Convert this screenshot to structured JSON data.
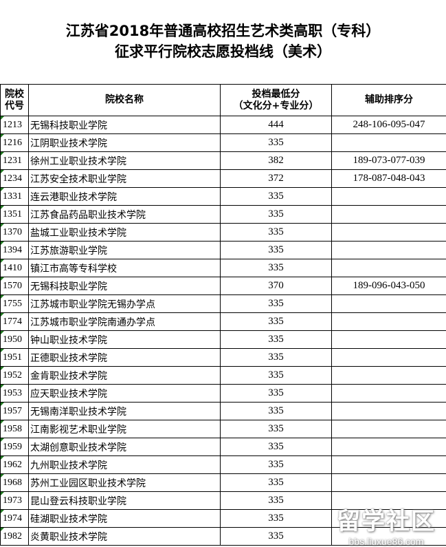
{
  "title": {
    "line1": "江苏省2018年普通高校招生艺术类高职（专科）",
    "line2": "征求平行院校志愿投档线（美术）"
  },
  "headers": {
    "code": "院校代号",
    "name": "院校名称",
    "score_line1": "投档最低分",
    "score_line2": "（文化分+专业分）",
    "aux": "辅助排序分"
  },
  "rows": [
    {
      "code": "1213",
      "name": "无锡科技职业学院",
      "score": "444",
      "aux": "248-106-095-047"
    },
    {
      "code": "1216",
      "name": "江阴职业技术学院",
      "score": "335",
      "aux": ""
    },
    {
      "code": "1231",
      "name": "徐州工业职业技术学院",
      "score": "382",
      "aux": "189-073-077-039"
    },
    {
      "code": "1234",
      "name": "江苏安全技术职业学院",
      "score": "372",
      "aux": "178-087-048-043"
    },
    {
      "code": "1331",
      "name": "连云港职业技术学院",
      "score": "335",
      "aux": ""
    },
    {
      "code": "1351",
      "name": "江苏食品药品职业技术学院",
      "score": "335",
      "aux": ""
    },
    {
      "code": "1370",
      "name": "盐城工业职业技术学院",
      "score": "335",
      "aux": ""
    },
    {
      "code": "1394",
      "name": "江苏旅游职业学院",
      "score": "335",
      "aux": ""
    },
    {
      "code": "1410",
      "name": "镇江市高等专科学校",
      "score": "335",
      "aux": ""
    },
    {
      "code": "1570",
      "name": "无锡科技职业学院",
      "score": "370",
      "aux": "189-096-043-050"
    },
    {
      "code": "1755",
      "name": "江苏城市职业学院无锡办学点",
      "score": "335",
      "aux": ""
    },
    {
      "code": "1774",
      "name": "江苏城市职业学院南通办学点",
      "score": "335",
      "aux": ""
    },
    {
      "code": "1950",
      "name": "钟山职业技术学院",
      "score": "335",
      "aux": ""
    },
    {
      "code": "1951",
      "name": "正德职业技术学院",
      "score": "335",
      "aux": ""
    },
    {
      "code": "1952",
      "name": "金肯职业技术学院",
      "score": "335",
      "aux": ""
    },
    {
      "code": "1953",
      "name": "应天职业技术学院",
      "score": "335",
      "aux": ""
    },
    {
      "code": "1957",
      "name": "无锡南洋职业技术学院",
      "score": "335",
      "aux": ""
    },
    {
      "code": "1958",
      "name": "江南影视艺术职业学院",
      "score": "335",
      "aux": ""
    },
    {
      "code": "1959",
      "name": "太湖创意职业技术学院",
      "score": "335",
      "aux": ""
    },
    {
      "code": "1962",
      "name": "九州职业技术学院",
      "score": "335",
      "aux": ""
    },
    {
      "code": "1968",
      "name": "苏州工业园区职业技术学院",
      "score": "335",
      "aux": ""
    },
    {
      "code": "1973",
      "name": "昆山登云科技职业学院",
      "score": "335",
      "aux": ""
    },
    {
      "code": "1974",
      "name": "硅湖职业技术学院",
      "score": "335",
      "aux": ""
    },
    {
      "code": "1982",
      "name": "炎黄职业技术学院",
      "score": "335",
      "aux": ""
    }
  ],
  "watermark": {
    "main": "留学社区",
    "url": "bbs.liuxue86.com"
  }
}
